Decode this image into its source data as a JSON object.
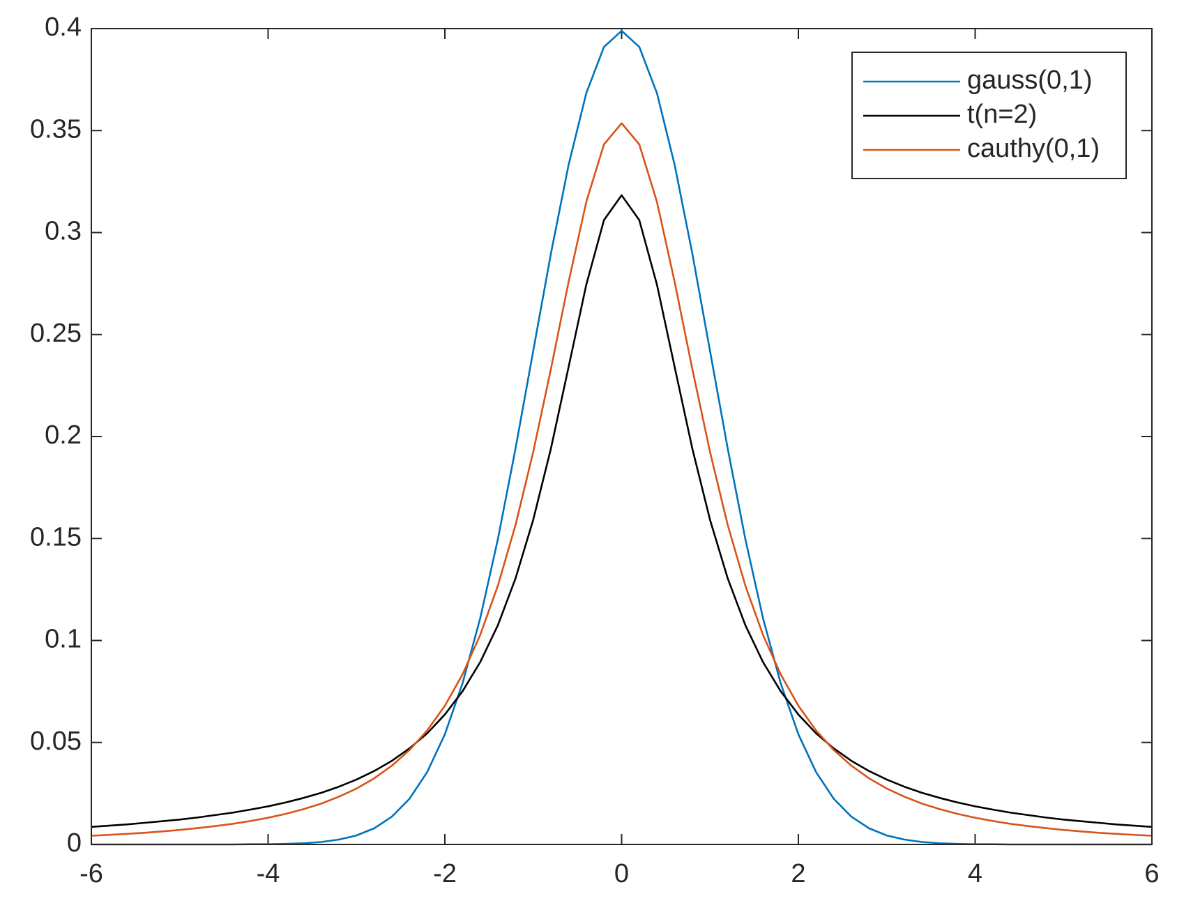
{
  "chart_data": {
    "type": "line",
    "x": [
      -6,
      -5.8,
      -5.6,
      -5.4,
      -5.2,
      -5,
      -4.8,
      -4.6,
      -4.4,
      -4.2,
      -4,
      -3.8,
      -3.6,
      -3.4,
      -3.2,
      -3,
      -2.8,
      -2.6,
      -2.4,
      -2.2,
      -2,
      -1.8,
      -1.6,
      -1.4,
      -1.2,
      -1,
      -0.8,
      -0.6,
      -0.4,
      -0.2,
      0,
      0.2,
      0.4,
      0.6,
      0.8,
      1,
      1.2,
      1.4,
      1.6,
      1.8,
      2,
      2.2,
      2.4,
      2.6,
      2.8,
      3,
      3.2,
      3.4,
      3.6,
      3.8,
      4,
      4.2,
      4.4,
      4.6,
      4.8,
      5,
      5.2,
      5.4,
      5.6,
      5.8,
      6
    ],
    "series": [
      {
        "name": "gauss(0,1)",
        "color": "#0072BD",
        "values": [
          0,
          0,
          0,
          0,
          0,
          0,
          0,
          0,
          0,
          0.0001,
          0.0001,
          0.0003,
          0.0006,
          0.0012,
          0.0024,
          0.0044,
          0.0079,
          0.0136,
          0.0224,
          0.0355,
          0.054,
          0.079,
          0.1109,
          0.1497,
          0.1942,
          0.242,
          0.2897,
          0.3332,
          0.3683,
          0.391,
          0.3989,
          0.391,
          0.3683,
          0.3332,
          0.2897,
          0.242,
          0.1942,
          0.1497,
          0.1109,
          0.079,
          0.054,
          0.0355,
          0.0224,
          0.0136,
          0.0079,
          0.0044,
          0.0024,
          0.0012,
          0.0006,
          0.0003,
          0.0001,
          0.0001,
          0,
          0,
          0,
          0,
          0,
          0,
          0,
          0,
          0
        ]
      },
      {
        "name": "t(n=2)",
        "color": "#000000",
        "values": [
          0.0086,
          0.0092,
          0.0098,
          0.0106,
          0.0114,
          0.0122,
          0.0132,
          0.0144,
          0.0156,
          0.0171,
          0.0187,
          0.0206,
          0.0228,
          0.0253,
          0.0283,
          0.0318,
          0.036,
          0.041,
          0.0471,
          0.0545,
          0.0637,
          0.0751,
          0.0894,
          0.1075,
          0.1305,
          0.1592,
          0.1941,
          0.2341,
          0.2744,
          0.3061,
          0.3183,
          0.3061,
          0.2744,
          0.2341,
          0.1941,
          0.1592,
          0.1305,
          0.1075,
          0.0894,
          0.0751,
          0.0637,
          0.0545,
          0.0471,
          0.041,
          0.036,
          0.0318,
          0.0283,
          0.0253,
          0.0228,
          0.0206,
          0.0187,
          0.0171,
          0.0156,
          0.0144,
          0.0132,
          0.0122,
          0.0114,
          0.0106,
          0.0098,
          0.0092,
          0.0086
        ]
      },
      {
        "name": "cauthy(0,1)",
        "color": "#D95319",
        "values": [
          0.0043,
          0.0047,
          0.0052,
          0.0057,
          0.0064,
          0.0071,
          0.008,
          0.009,
          0.0101,
          0.0115,
          0.0131,
          0.015,
          0.0173,
          0.02,
          0.0234,
          0.0274,
          0.0324,
          0.0386,
          0.0463,
          0.0559,
          0.068,
          0.0834,
          0.1027,
          0.1269,
          0.1567,
          0.1925,
          0.2331,
          0.2758,
          0.315,
          0.3432,
          0.3536,
          0.3432,
          0.315,
          0.2758,
          0.2331,
          0.1925,
          0.1567,
          0.1269,
          0.1027,
          0.0834,
          0.068,
          0.0559,
          0.0463,
          0.0386,
          0.0324,
          0.0274,
          0.0234,
          0.02,
          0.0173,
          0.015,
          0.0131,
          0.0115,
          0.0101,
          0.009,
          0.008,
          0.0071,
          0.0064,
          0.0057,
          0.0052,
          0.0047,
          0.0043
        ]
      }
    ],
    "xlim": [
      -6,
      6
    ],
    "xticks": [
      -6,
      -4,
      -2,
      0,
      2,
      4,
      6
    ],
    "ylim": [
      0,
      0.4
    ],
    "yticks": [
      0,
      0.05,
      0.1,
      0.15,
      0.2,
      0.25,
      0.3,
      0.35,
      0.4
    ],
    "grid": false,
    "legend": "upper right"
  }
}
